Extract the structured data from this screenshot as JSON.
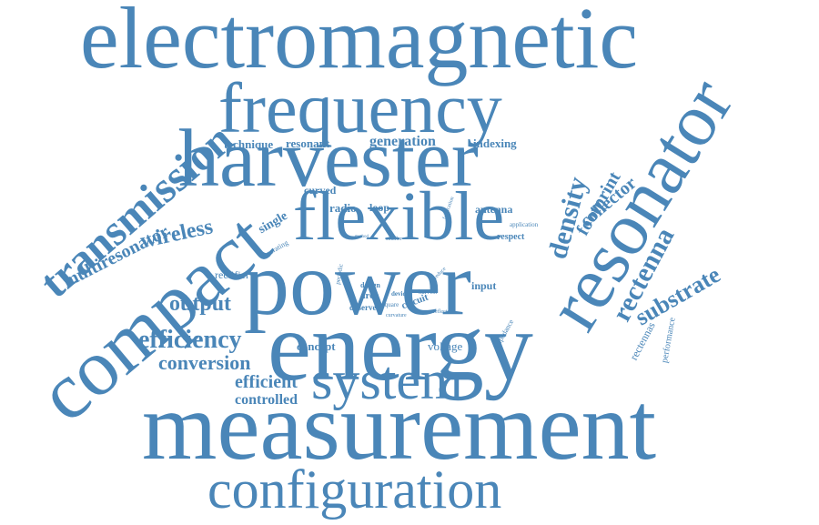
{
  "color": "#4a86b8",
  "words": [
    {
      "id": "electromagnetic",
      "text": "electromagnetic"
    },
    {
      "id": "frequency",
      "text": "frequency"
    },
    {
      "id": "harvester",
      "text": "harvester"
    },
    {
      "id": "resonator",
      "text": "resonator"
    },
    {
      "id": "transmission",
      "text": "transmission"
    },
    {
      "id": "flexible",
      "text": "flexible"
    },
    {
      "id": "compact",
      "text": "compact"
    },
    {
      "id": "power",
      "text": "power"
    },
    {
      "id": "energy",
      "text": "energy"
    },
    {
      "id": "measurement",
      "text": "measurement"
    },
    {
      "id": "configuration",
      "text": "configuration"
    },
    {
      "id": "system",
      "text": "system"
    },
    {
      "id": "efficiency",
      "text": "efficiency"
    },
    {
      "id": "conversion",
      "text": "conversion"
    },
    {
      "id": "output",
      "text": "output"
    },
    {
      "id": "wireless",
      "text": "wireless"
    },
    {
      "id": "multiresonator",
      "text": "multiresonator"
    },
    {
      "id": "rectenna",
      "text": "rectenna"
    },
    {
      "id": "substrate",
      "text": "substrate"
    },
    {
      "id": "density",
      "text": "density"
    },
    {
      "id": "collector",
      "text": "collector"
    },
    {
      "id": "footprint",
      "text": "footprint"
    },
    {
      "id": "efficient",
      "text": "efficient"
    },
    {
      "id": "controlled",
      "text": "controlled"
    },
    {
      "id": "concept",
      "text": "concept"
    },
    {
      "id": "voltage",
      "text": "voltage"
    },
    {
      "id": "technique",
      "text": "technique"
    },
    {
      "id": "resonant",
      "text": "resonant"
    },
    {
      "id": "generation",
      "text": "generation"
    },
    {
      "id": "indexing",
      "text": "indexing"
    },
    {
      "id": "curved",
      "text": "curved"
    },
    {
      "id": "radio",
      "text": "radio"
    },
    {
      "id": "loop",
      "text": "loop"
    },
    {
      "id": "antenna",
      "text": "antenna"
    },
    {
      "id": "respect",
      "text": "respect"
    },
    {
      "id": "single",
      "text": "single"
    },
    {
      "id": "rectifier",
      "text": "rectifier"
    },
    {
      "id": "input",
      "text": "input"
    },
    {
      "id": "area",
      "text": "area"
    },
    {
      "id": "observed",
      "text": "observed"
    },
    {
      "id": "circuit",
      "text": "circuit"
    },
    {
      "id": "rectennas",
      "text": "rectennas"
    },
    {
      "id": "performance",
      "text": "performance"
    },
    {
      "id": "impedance",
      "text": "impedance"
    },
    {
      "id": "application",
      "text": "application"
    },
    {
      "id": "operating",
      "text": "operating"
    },
    {
      "id": "fabrication",
      "text": "fabrication"
    },
    {
      "id": "design",
      "text": "design"
    },
    {
      "id": "device",
      "text": "device"
    },
    {
      "id": "square",
      "text": "square"
    },
    {
      "id": "harvest",
      "text": "harvest"
    },
    {
      "id": "curvature",
      "text": "curvature"
    },
    {
      "id": "periodic",
      "text": "periodic"
    },
    {
      "id": "reflector",
      "text": "reflector"
    },
    {
      "id": "reduce",
      "text": "reduce"
    },
    {
      "id": "smaller",
      "text": "smaller"
    },
    {
      "id": "method",
      "text": "method"
    }
  ]
}
